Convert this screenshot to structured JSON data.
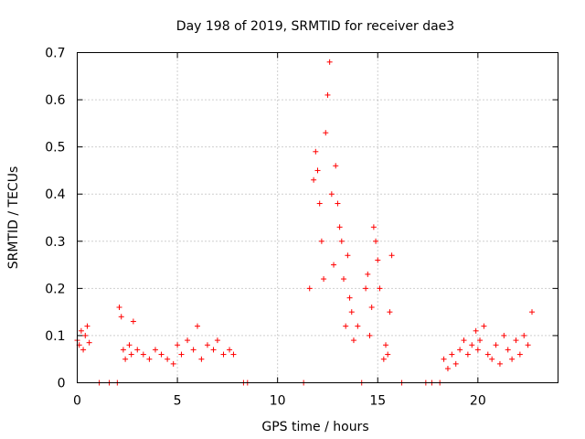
{
  "chart_data": {
    "type": "scatter",
    "title": "Day 198 of 2019, SRMTID for receiver dae3",
    "xlabel": "GPS time / hours",
    "ylabel": "SRMTID / TECUs",
    "xlim": [
      0,
      24
    ],
    "ylim": [
      0,
      0.7
    ],
    "xticks": [
      0,
      5,
      10,
      15,
      20
    ],
    "xtick_labels": [
      "0",
      "5",
      "10",
      "15",
      "20"
    ],
    "yticks": [
      0,
      0.1,
      0.2,
      0.3,
      0.4,
      0.5,
      0.6,
      0.7
    ],
    "ytick_labels": [
      "0",
      "0.1",
      "0.2",
      "0.3",
      "0.4",
      "0.5",
      "0.6",
      "0.7"
    ],
    "grid": true,
    "marker": "+",
    "color": "#ff0000",
    "series": [
      {
        "name": "SRMTID",
        "x": [
          0.0,
          0.1,
          0.2,
          0.3,
          0.4,
          0.5,
          0.6,
          1.1,
          1.6,
          2.0,
          2.1,
          2.2,
          2.3,
          2.4,
          2.6,
          2.7,
          2.8,
          3.0,
          3.3,
          3.6,
          3.9,
          4.2,
          4.5,
          4.8,
          5.0,
          5.2,
          5.5,
          5.8,
          6.0,
          6.2,
          6.5,
          6.8,
          7.0,
          7.3,
          7.6,
          7.8,
          8.3,
          8.5,
          11.3,
          11.6,
          11.8,
          11.9,
          12.0,
          12.1,
          12.2,
          12.3,
          12.4,
          12.5,
          12.6,
          12.7,
          12.8,
          12.9,
          13.0,
          13.1,
          13.2,
          13.3,
          13.4,
          13.5,
          13.6,
          13.7,
          13.8,
          14.0,
          14.2,
          14.4,
          14.5,
          14.6,
          14.7,
          14.8,
          14.9,
          15.0,
          15.1,
          15.3,
          15.4,
          15.5,
          15.6,
          15.7,
          16.2,
          17.4,
          17.7,
          18.1,
          18.3,
          18.5,
          18.7,
          18.9,
          19.1,
          19.3,
          19.5,
          19.7,
          19.9,
          20.0,
          20.1,
          20.3,
          20.5,
          20.7,
          20.9,
          21.1,
          21.3,
          21.5,
          21.7,
          21.9,
          22.1,
          22.3,
          22.5,
          22.7
        ],
        "y": [
          0.09,
          0.08,
          0.11,
          0.07,
          0.1,
          0.12,
          0.085,
          0.0,
          0.0,
          0.0,
          0.16,
          0.14,
          0.07,
          0.05,
          0.08,
          0.06,
          0.13,
          0.07,
          0.06,
          0.05,
          0.07,
          0.06,
          0.05,
          0.04,
          0.08,
          0.06,
          0.09,
          0.07,
          0.12,
          0.05,
          0.08,
          0.07,
          0.09,
          0.06,
          0.07,
          0.06,
          0.0,
          0.0,
          0.0,
          0.2,
          0.43,
          0.49,
          0.45,
          0.38,
          0.3,
          0.22,
          0.53,
          0.61,
          0.68,
          0.4,
          0.25,
          0.46,
          0.38,
          0.33,
          0.3,
          0.22,
          0.12,
          0.27,
          0.18,
          0.15,
          0.09,
          0.12,
          0.0,
          0.2,
          0.23,
          0.1,
          0.16,
          0.33,
          0.3,
          0.26,
          0.2,
          0.05,
          0.08,
          0.06,
          0.15,
          0.27,
          0.0,
          0.0,
          0.0,
          0.0,
          0.05,
          0.03,
          0.06,
          0.04,
          0.07,
          0.09,
          0.06,
          0.08,
          0.11,
          0.07,
          0.09,
          0.12,
          0.06,
          0.05,
          0.08,
          0.04,
          0.1,
          0.07,
          0.05,
          0.09,
          0.06,
          0.1,
          0.08,
          0.15
        ]
      }
    ]
  }
}
